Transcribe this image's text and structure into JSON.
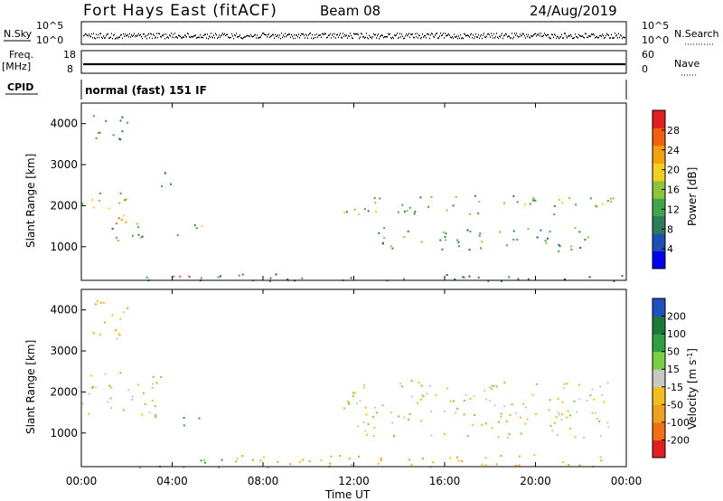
{
  "header": {
    "station": "Fort Hays East (fitACF)",
    "beam": "Beam 08",
    "date": "24/Aug/2019"
  },
  "panels": {
    "nsky_label": "N.Sky",
    "nsky_ticks": [
      "10^5",
      "10^0"
    ],
    "nsearch_label": "N.Search",
    "nsearch_ticks": [
      "10^5",
      "10^0"
    ],
    "freq_label_1": "Freq.",
    "freq_label_2": "[MHz]",
    "freq_ticks": [
      "18",
      "8"
    ],
    "nave_label": "Nave",
    "nave_ticks": [
      "60",
      "0"
    ],
    "cpid_label": "CPID",
    "cpid_value": "normal (fast) 151 IF"
  },
  "power_colorbar": {
    "title": "Power [dB]",
    "ticks": [
      "28",
      "24",
      "20",
      "16",
      "12",
      "8",
      "4"
    ],
    "colors": [
      "#0000ee",
      "#1e4fb4",
      "#2e7d5a",
      "#3fa64a",
      "#8fc43a",
      "#f0d020",
      "#f4a010",
      "#f06010",
      "#e02020"
    ]
  },
  "velocity_colorbar": {
    "title": "Velocity [m s",
    "title_sup": "-1",
    "title_end": "]",
    "ticks": [
      "200",
      "100",
      "50",
      "15",
      "-15",
      "-50",
      "-100",
      "-200"
    ],
    "colors": [
      "#2050c0",
      "#1a7a3a",
      "#30a040",
      "#7ad040",
      "#c8c8c0",
      "#f0c020",
      "#f0a020",
      "#f07018",
      "#e02020"
    ]
  },
  "chart_data": {
    "type": "heatmap",
    "xlabel": "Time UT",
    "ylabel": "Slant Range [km]",
    "x_ticks": [
      "00:00",
      "04:00",
      "08:00",
      "12:00",
      "16:00",
      "20:00",
      "00:00"
    ],
    "y_ticks": [
      "4000",
      "3000",
      "2000",
      "1000"
    ],
    "xlim_hours": [
      0,
      24
    ],
    "ylim_km": [
      180,
      4500
    ],
    "power_range_db": [
      0,
      32
    ],
    "velocity_range_ms": [
      -250,
      250
    ],
    "power_echo_regions": [
      {
        "t": [
          0.2,
          2.0
        ],
        "r": [
          3500,
          4300
        ],
        "db": 10
      },
      {
        "t": [
          0.0,
          2.0
        ],
        "r": [
          1900,
          2500
        ],
        "db": 16
      },
      {
        "t": [
          0.8,
          2.5
        ],
        "r": [
          1500,
          1900
        ],
        "db": 24
      },
      {
        "t": [
          1.2,
          2.8
        ],
        "r": [
          900,
          1500
        ],
        "db": 12
      },
      {
        "t": [
          3.5,
          4.0
        ],
        "r": [
          2300,
          2900
        ],
        "db": 10
      },
      {
        "t": [
          4.2,
          5.5
        ],
        "r": [
          1200,
          1600
        ],
        "db": 12
      },
      {
        "t": [
          3.5,
          6.0
        ],
        "r": [
          180,
          350
        ],
        "db": 28
      },
      {
        "t": [
          0.0,
          24.0
        ],
        "r": [
          180,
          350
        ],
        "db": 8
      },
      {
        "t": [
          11.5,
          23.5
        ],
        "r": [
          1800,
          2300
        ],
        "db": 14
      },
      {
        "t": [
          13.0,
          22.5
        ],
        "r": [
          900,
          1500
        ],
        "db": 12
      }
    ],
    "velocity_echo_regions": [
      {
        "t": [
          0.2,
          2.0
        ],
        "r": [
          3300,
          4300
        ],
        "v": -40
      },
      {
        "t": [
          0.0,
          3.5
        ],
        "r": [
          1400,
          2500
        ],
        "v": 0
      },
      {
        "t": [
          4.2,
          5.5
        ],
        "r": [
          1200,
          1500
        ],
        "v": 60
      },
      {
        "t": [
          2.5,
          6.5
        ],
        "r": [
          180,
          400
        ],
        "v": 40
      },
      {
        "t": [
          6.0,
          24.0
        ],
        "r": [
          180,
          500
        ],
        "v": -60
      },
      {
        "t": [
          11.5,
          23.5
        ],
        "r": [
          900,
          2300
        ],
        "v": 0
      }
    ]
  }
}
